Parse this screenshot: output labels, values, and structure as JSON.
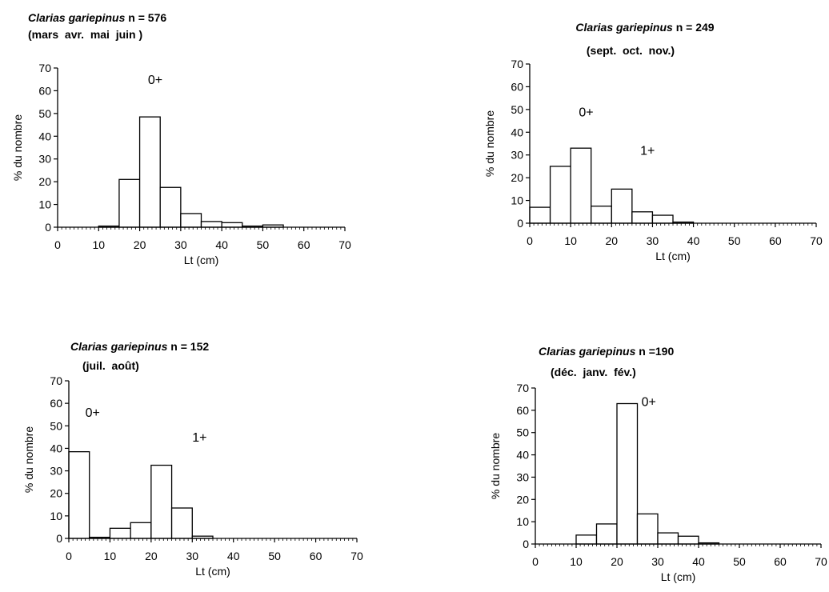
{
  "chart_data": [
    {
      "type": "bar",
      "title_species": "Clarias gariepinus",
      "title_count": "n = 576",
      "subtitle": "(mars  avr.  mai  juin )",
      "xlabel": "Lt (cm)",
      "ylabel": "% du nombre",
      "bin_width": 5,
      "x_bins_start": [
        0,
        5,
        10,
        15,
        20,
        25,
        30,
        35,
        40,
        45,
        50,
        55,
        60,
        65
      ],
      "values": [
        0,
        0,
        0.5,
        21,
        48.5,
        17.5,
        6,
        2.5,
        2,
        0.5,
        1,
        0,
        0,
        0
      ],
      "xlim": [
        0,
        70
      ],
      "ylim": [
        0,
        70
      ],
      "xticks": [
        0,
        10,
        20,
        30,
        40,
        50,
        60,
        70
      ],
      "yticks": [
        0,
        10,
        20,
        30,
        40,
        50,
        60,
        70
      ],
      "annotations": [
        {
          "text": "0+",
          "x": 22,
          "y": 63
        }
      ]
    },
    {
      "type": "bar",
      "title_species": "Clarias gariepinus",
      "title_count": "n = 249",
      "subtitle": "(sept.  oct.  nov.)",
      "xlabel": "Lt (cm)",
      "ylabel": "% du nombre",
      "bin_width": 5,
      "x_bins_start": [
        0,
        5,
        10,
        15,
        20,
        25,
        30,
        35,
        40,
        45,
        50,
        55,
        60,
        65
      ],
      "values": [
        7,
        25,
        33,
        7.5,
        15,
        5,
        3.5,
        0.5,
        0,
        0,
        0,
        0,
        0,
        0
      ],
      "xlim": [
        0,
        70
      ],
      "ylim": [
        0,
        70
      ],
      "xticks": [
        0,
        10,
        20,
        30,
        40,
        50,
        60,
        70
      ],
      "yticks": [
        0,
        10,
        20,
        30,
        40,
        50,
        60,
        70
      ],
      "annotations": [
        {
          "text": "0+",
          "x": 12,
          "y": 47
        },
        {
          "text": "1+",
          "x": 27,
          "y": 30
        }
      ]
    },
    {
      "type": "bar",
      "title_species": "Clarias gariepinus",
      "title_count": "n = 152",
      "subtitle": "(juil.  août)",
      "xlabel": "Lt (cm)",
      "ylabel": "% du nombre",
      "bin_width": 5,
      "x_bins_start": [
        0,
        5,
        10,
        15,
        20,
        25,
        30,
        35,
        40,
        45,
        50,
        55,
        60,
        65
      ],
      "values": [
        38.5,
        0.5,
        4.5,
        7,
        32.5,
        13.5,
        1,
        0,
        0,
        0,
        0,
        0,
        0,
        0
      ],
      "xlim": [
        0,
        70
      ],
      "ylim": [
        0,
        70
      ],
      "xticks": [
        0,
        10,
        20,
        30,
        40,
        50,
        60,
        70
      ],
      "yticks": [
        0,
        10,
        20,
        30,
        40,
        50,
        60,
        70
      ],
      "annotations": [
        {
          "text": "0+",
          "x": 4,
          "y": 54
        },
        {
          "text": "1+",
          "x": 30,
          "y": 43
        }
      ]
    },
    {
      "type": "bar",
      "title_species": "Clarias gariepinus",
      "title_count": "n =190",
      "subtitle": "(déc.  janv.  fév.)",
      "xlabel": "Lt (cm)",
      "ylabel": "% du nombre",
      "bin_width": 5,
      "x_bins_start": [
        0,
        5,
        10,
        15,
        20,
        25,
        30,
        35,
        40,
        45,
        50,
        55,
        60,
        65
      ],
      "values": [
        0,
        0,
        4,
        9,
        63,
        13.5,
        5,
        3.5,
        0.5,
        0,
        0,
        0,
        0,
        0
      ],
      "xlim": [
        0,
        70
      ],
      "ylim": [
        0,
        70
      ],
      "xticks": [
        0,
        10,
        20,
        30,
        40,
        50,
        60,
        70
      ],
      "yticks": [
        0,
        10,
        20,
        30,
        40,
        50,
        60,
        70
      ],
      "annotations": [
        {
          "text": "0+",
          "x": 26,
          "y": 62
        }
      ]
    }
  ]
}
